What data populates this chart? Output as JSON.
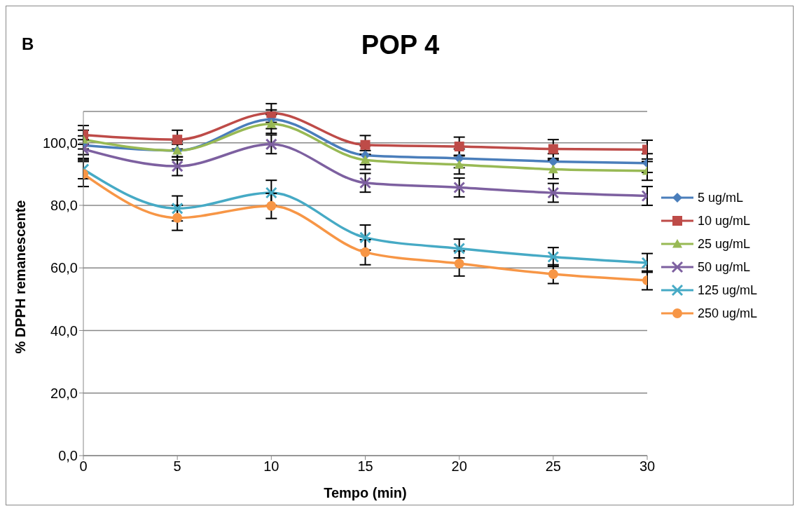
{
  "chart_data": {
    "type": "line",
    "title": "POP 4",
    "xlabel": "Tempo (min)",
    "ylabel": "% DPPH remanescente",
    "annotations": [
      "B"
    ],
    "x": [
      0,
      5,
      10,
      15,
      20,
      25,
      30
    ],
    "series": [
      {
        "name": "5 ug/mL",
        "color": "#4a7ebb",
        "marker": "diamond",
        "values": [
          99.2,
          97.5,
          107.5,
          96,
          95,
          94,
          93.5
        ],
        "errors": [
          3,
          2,
          3,
          3,
          3,
          2.5,
          3
        ]
      },
      {
        "name": "10 ug/mL",
        "color": "#be4b48",
        "marker": "square",
        "values": [
          102.5,
          101,
          109.5,
          99.3,
          98.8,
          98,
          97.8
        ],
        "errors": [
          3,
          3,
          3,
          3,
          3,
          3,
          3
        ]
      },
      {
        "name": "25 ug/mL",
        "color": "#98b954",
        "marker": "triangle",
        "values": [
          101,
          97.5,
          106,
          94.5,
          93,
          91.5,
          91
        ],
        "errors": [
          3,
          3,
          3,
          3,
          3,
          3,
          3
        ]
      },
      {
        "name": "50 ug/mL",
        "color": "#7d60a0",
        "marker": "cross",
        "values": [
          98,
          92.5,
          99.5,
          87.2,
          85.7,
          84,
          83
        ],
        "errors": [
          3,
          3,
          3,
          3,
          3,
          3,
          3
        ]
      },
      {
        "name": "125 ug/mL",
        "color": "#46aac5",
        "marker": "cross",
        "values": [
          91.5,
          79,
          84,
          69.7,
          66.2,
          63.5,
          61.6
        ],
        "errors": [
          3,
          4,
          4,
          4,
          3,
          3,
          3
        ]
      },
      {
        "name": "250 ug/mL",
        "color": "#f79646",
        "marker": "circle",
        "values": [
          90,
          76,
          79.8,
          65,
          61.4,
          58,
          56
        ],
        "errors": [
          4,
          4,
          4,
          4,
          4,
          3,
          3
        ]
      }
    ],
    "xlim": [
      0,
      30
    ],
    "xticks": [
      0,
      5,
      10,
      15,
      20,
      25,
      30
    ],
    "ylim": [
      0,
      110
    ],
    "yticks": [
      {
        "value": 0,
        "label": "0,0"
      },
      {
        "value": 20,
        "label": "20,0"
      },
      {
        "value": 40,
        "label": "40,0"
      },
      {
        "value": 60,
        "label": "60,0"
      },
      {
        "value": 80,
        "label": "80,0"
      },
      {
        "value": 100,
        "label": "100,0"
      }
    ],
    "grid": "y",
    "legend": "right",
    "line_style": "solid"
  }
}
